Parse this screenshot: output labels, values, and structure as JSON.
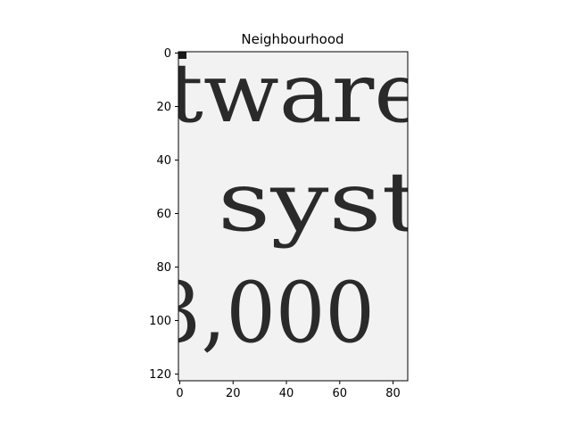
{
  "chart_data": {
    "type": "image",
    "title": "Neighbourhood",
    "xlabel": "",
    "ylabel": "",
    "xlim": [
      -0.5,
      85.5
    ],
    "ylim": [
      122.5,
      -0.5
    ],
    "y_inverted": true,
    "xticks": [
      0,
      20,
      40,
      60,
      80
    ],
    "yticks": [
      0,
      20,
      40,
      60,
      80,
      100,
      120
    ],
    "colormap": "gray",
    "grid": false,
    "image_text": [
      "tware",
      "syst",
      "3,000"
    ]
  },
  "colors": {
    "background": "#f2f2f2",
    "ink": "#2a2a2a",
    "axis": "#000000"
  }
}
